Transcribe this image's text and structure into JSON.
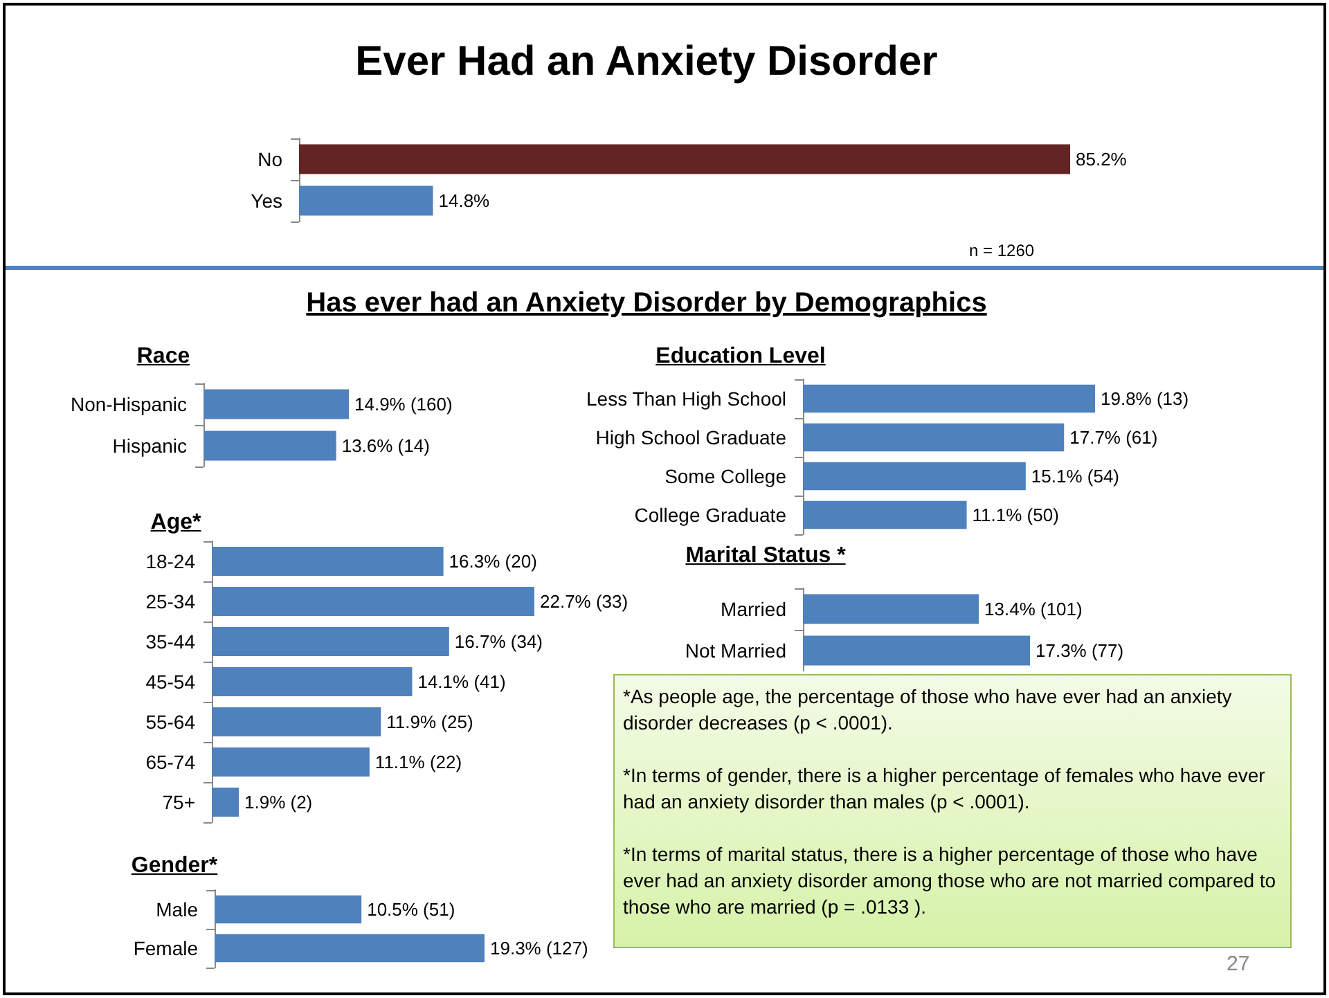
{
  "chart_data": [
    {
      "type": "bar",
      "orientation": "horizontal",
      "title": "Ever Had an Anxiety Disorder",
      "categories": [
        "No",
        "Yes"
      ],
      "values": [
        85.2,
        14.8
      ],
      "colors": [
        "#632523",
        "#4f81bd"
      ],
      "value_labels": [
        "85.2%",
        "14.8%"
      ],
      "annotations": [
        "n = 1260"
      ]
    },
    {
      "type": "other",
      "title": "Has ever had an Anxiety Disorder by Demographics",
      "annotations": [
        "*As people age, the percentage of those who have ever had an anxiety disorder decreases (p < .0001).",
        "*In terms of gender, there is a higher percentage of females who have ever had an anxiety disorder than males (p < .0001).",
        "*In terms of marital status, there is a higher percentage of those who have ever had an anxiety disorder among those who are not married compared to those who are married (p = .0133 ).",
        "27"
      ]
    },
    {
      "type": "bar",
      "orientation": "horizontal",
      "title": "Race",
      "categories": [
        "Non-Hispanic",
        "Hispanic"
      ],
      "values": [
        14.9,
        13.6
      ],
      "color": "#4f81bd",
      "value_labels": [
        "14.9% (160)",
        "13.6% (14)"
      ]
    },
    {
      "type": "bar",
      "orientation": "horizontal",
      "title": "Education Level",
      "categories": [
        "Less Than High School",
        "High School Graduate",
        "Some College",
        "College Graduate"
      ],
      "values": [
        19.8,
        17.7,
        15.1,
        11.1
      ],
      "color": "#4f81bd",
      "value_labels": [
        "19.8% (13)",
        "17.7% (61)",
        "15.1% (54)",
        "11.1% (50)"
      ]
    },
    {
      "type": "bar",
      "orientation": "horizontal",
      "title": "Age*",
      "categories": [
        "18-24",
        "25-34",
        "35-44",
        "45-54",
        "55-64",
        "65-74",
        "75+"
      ],
      "values": [
        16.3,
        22.7,
        16.7,
        14.1,
        11.9,
        11.1,
        1.9
      ],
      "color": "#4f81bd",
      "value_labels": [
        "16.3% (20)",
        "22.7% (33)",
        "16.7% (34)",
        "14.1% (41)",
        "11.9% (25)",
        "11.1% (22)",
        "1.9% (2)"
      ]
    },
    {
      "type": "bar",
      "orientation": "horizontal",
      "title": "Marital Status *",
      "categories": [
        "Married",
        "Not Married"
      ],
      "values": [
        13.4,
        17.3
      ],
      "color": "#4f81bd",
      "value_labels": [
        "13.4% (101)",
        "17.3% (77)"
      ]
    },
    {
      "type": "bar",
      "orientation": "horizontal",
      "title": "Gender*",
      "categories": [
        "Male",
        "Female"
      ],
      "values": [
        10.5,
        19.3
      ],
      "color": "#4f81bd",
      "value_labels": [
        "10.5% (51)",
        "19.3% (127)"
      ]
    }
  ]
}
